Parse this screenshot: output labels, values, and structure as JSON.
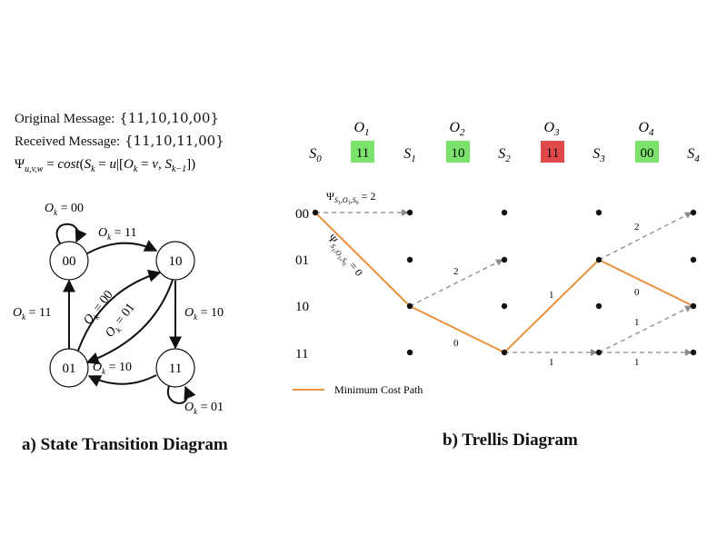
{
  "header": {
    "original_label": "Original Message:",
    "original_value": "{11,10,10,00}",
    "received_label": "Received Message:",
    "received_value": "{11,10,11,00}",
    "cost_formula": "Ψu,v,w = cost(Sk = u|[Ok = v, Sk−1])"
  },
  "state_diagram": {
    "caption": "a) State Transition Diagram",
    "states": [
      "00",
      "10",
      "01",
      "11"
    ],
    "transitions": [
      {
        "from": "00",
        "to": "00",
        "label": "Ok = 00"
      },
      {
        "from": "00",
        "to": "10",
        "label": "Ok = 11"
      },
      {
        "from": "01",
        "to": "00",
        "label": "Ok = 11"
      },
      {
        "from": "01",
        "to": "10",
        "label": "Ok = 00"
      },
      {
        "from": "10",
        "to": "01",
        "label": "Ok = 01"
      },
      {
        "from": "10",
        "to": "11",
        "label": "Ok = 10"
      },
      {
        "from": "11",
        "to": "01",
        "label": "Ok = 10"
      },
      {
        "from": "11",
        "to": "11",
        "label": "Ok = 01"
      }
    ]
  },
  "trellis": {
    "caption": "b) Trellis Diagram",
    "stage_labels": [
      "S0",
      "S1",
      "S2",
      "S3",
      "S4"
    ],
    "observations": [
      {
        "label": "O1",
        "value": "11",
        "status": "match",
        "color": "#7be36b"
      },
      {
        "label": "O2",
        "value": "10",
        "status": "match",
        "color": "#7be36b"
      },
      {
        "label": "O3",
        "value": "11",
        "status": "error",
        "color": "#e0484a"
      },
      {
        "label": "O4",
        "value": "00",
        "status": "match",
        "color": "#7be36b"
      }
    ],
    "row_labels": [
      "00",
      "01",
      "10",
      "11"
    ],
    "top_edge_label": "ΨS1,O1,S0 = 2",
    "diag_edge_label": "ΨS1,O1,S0 = 0",
    "edge_costs": [
      "2",
      "0",
      "1",
      "0",
      "2",
      "1",
      "1",
      "1"
    ],
    "legend_label": "Minimum Cost Path",
    "path_color": "#e8913f",
    "dashed_color": "#8a8a8a"
  }
}
